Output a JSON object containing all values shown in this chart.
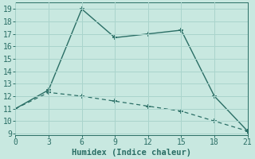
{
  "line1_x": [
    0,
    3,
    6,
    9,
    12,
    15,
    18,
    21
  ],
  "line1_y": [
    11,
    12.5,
    19,
    16.7,
    17,
    17.3,
    12,
    9.2
  ],
  "line2_x": [
    0,
    3,
    6,
    9,
    12,
    15,
    18,
    21
  ],
  "line2_y": [
    11,
    12.3,
    12.0,
    11.6,
    11.2,
    10.8,
    10.0,
    9.2
  ],
  "line_color": "#2a6e65",
  "background_color": "#c8e8e0",
  "grid_color": "#aad4cc",
  "xlabel": "Humidex (Indice chaleur)",
  "ylim_min": 9,
  "ylim_max": 19.5,
  "xlim_min": 0,
  "xlim_max": 21,
  "yticks": [
    9,
    10,
    11,
    12,
    13,
    14,
    15,
    16,
    17,
    18,
    19
  ],
  "xticks": [
    0,
    3,
    6,
    9,
    12,
    15,
    18,
    21
  ],
  "font_family": "monospace",
  "tick_fontsize": 7,
  "xlabel_fontsize": 7.5
}
